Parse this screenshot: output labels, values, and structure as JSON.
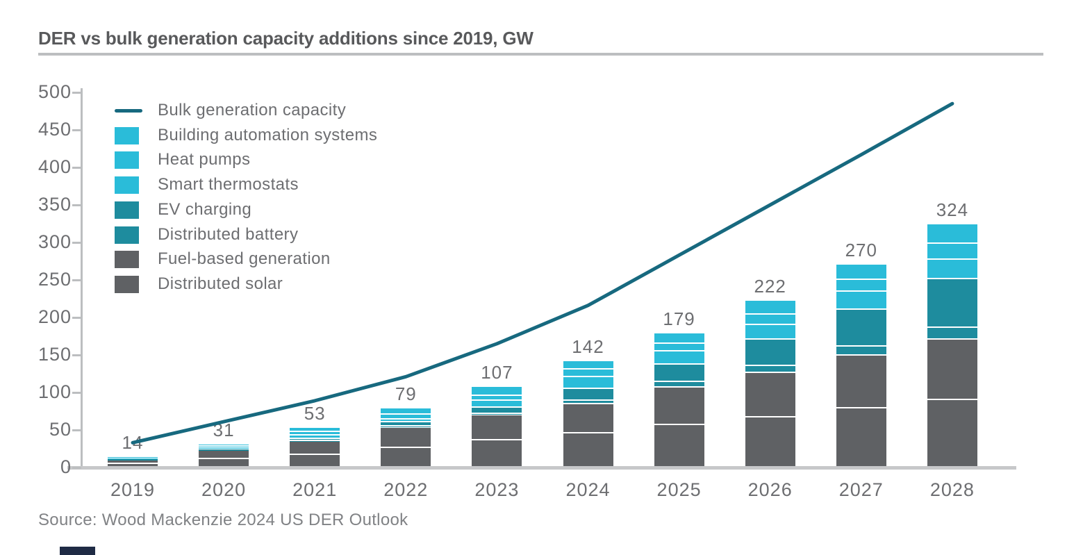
{
  "page": {
    "title": "DER vs bulk generation capacity additions since 2019, GW",
    "source_note": "Source: Wood Mackenzie 2024 US DER Outlook"
  },
  "colors": {
    "title_text": "#58595B",
    "axis_text": "#6D6E71",
    "axis_line": "#BCBEC0",
    "baseline": "#C7C8CA",
    "source_text": "#808285",
    "line_series": "#17697F",
    "cyan_segment": "#2ABCD9",
    "teal_segment": "#1E8C9E",
    "gray_segment": "#5F6164",
    "footer_accent": "#1F2B45",
    "bar_label_text": "#6D6E71"
  },
  "chart_data": {
    "type": "line+stacked-bar",
    "title": "DER vs bulk generation capacity additions since 2019, GW",
    "xlabel": "",
    "ylabel": "GW",
    "ylim": [
      0,
      500
    ],
    "ytick_step": 50,
    "yticks": [
      0,
      50,
      100,
      150,
      200,
      250,
      300,
      350,
      400,
      450,
      500
    ],
    "grid": false,
    "legend_position": "top-left-inside",
    "categories": [
      "2019",
      "2020",
      "2021",
      "2022",
      "2023",
      "2024",
      "2025",
      "2026",
      "2027",
      "2028"
    ],
    "line_series": {
      "name": "Bulk generation capacity",
      "color": "#17697F",
      "values": [
        33,
        61,
        89,
        121,
        165,
        216,
        283,
        350,
        417,
        485
      ]
    },
    "bar_series_bottom_to_top": [
      {
        "name": "Distributed solar",
        "color": "#5F6164",
        "values": [
          5,
          11,
          17,
          26,
          36,
          45,
          56.5,
          67,
          78.5,
          89.5
        ]
      },
      {
        "name": "Fuel-based generation",
        "color": "#5F6164",
        "values": [
          5,
          12,
          18,
          27,
          33,
          39,
          50,
          59,
          71,
          81
        ]
      },
      {
        "name": "Distributed battery",
        "color": "#1E8C9E",
        "values": [
          0.5,
          0.5,
          0.5,
          1.5,
          2.5,
          5,
          7,
          9,
          12,
          16
        ]
      },
      {
        "name": "EV charging",
        "color": "#1E8C9E",
        "values": [
          0.5,
          0.5,
          2.5,
          5.5,
          8.5,
          15.5,
          23.5,
          35,
          48.5,
          64.5
        ]
      },
      {
        "name": "Smart thermostats",
        "color": "#2ABCD9",
        "values": [
          1,
          2,
          4.5,
          4,
          8.5,
          15.5,
          17.5,
          20,
          24,
          25.5
        ]
      },
      {
        "name": "Heat pumps",
        "color": "#2ABCD9",
        "values": [
          0.5,
          1.5,
          4.5,
          6,
          7,
          10.5,
          10.5,
          14,
          16,
          21.5
        ]
      },
      {
        "name": "Building automation systems",
        "color": "#2ABCD9",
        "values": [
          1.5,
          3.5,
          6,
          9,
          11.5,
          11.5,
          14,
          18,
          20,
          26
        ]
      }
    ],
    "bar_totals": [
      14,
      31,
      53,
      79,
      107,
      142,
      179,
      222,
      270,
      324
    ],
    "legend_order_top_to_bottom": [
      "Bulk generation capacity",
      "Building automation systems",
      "Heat pumps",
      "Smart thermostats",
      "EV charging",
      "Distributed battery",
      "Fuel-based generation",
      "Distributed solar"
    ]
  }
}
